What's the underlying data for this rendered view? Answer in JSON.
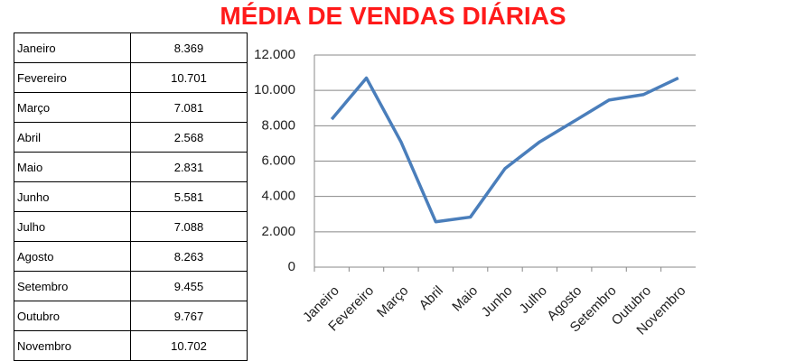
{
  "chart_data": {
    "type": "line",
    "title": "MÉDIA DE VENDAS DIÁRIAS",
    "categories": [
      "Janeiro",
      "Fevereiro",
      "Março",
      "Abril",
      "Maio",
      "Junho",
      "Julho",
      "Agosto",
      "Setembro",
      "Outubro",
      "Novembro"
    ],
    "values": [
      8369,
      10701,
      7081,
      2568,
      2831,
      5581,
      7088,
      8263,
      9455,
      9767,
      10702
    ],
    "value_labels": [
      "8.369",
      "10.701",
      "7.081",
      "2.568",
      "2.831",
      "5.581",
      "7.088",
      "8.263",
      "9.455",
      "9.767",
      "10.702"
    ],
    "color": "#4a7ebb",
    "ylim": [
      0,
      12000
    ],
    "yticks": [
      0,
      {
        "value": 2000,
        "label": "2.000"
      },
      {
        "value": 4000,
        "label": "4.000"
      },
      {
        "value": 6000,
        "label": "6.000"
      },
      {
        "value": 8000,
        "label": "8.000"
      },
      {
        "value": 10000,
        "label": "10.000"
      },
      {
        "value": 12000,
        "label": "12.000"
      }
    ],
    "grid": true
  }
}
